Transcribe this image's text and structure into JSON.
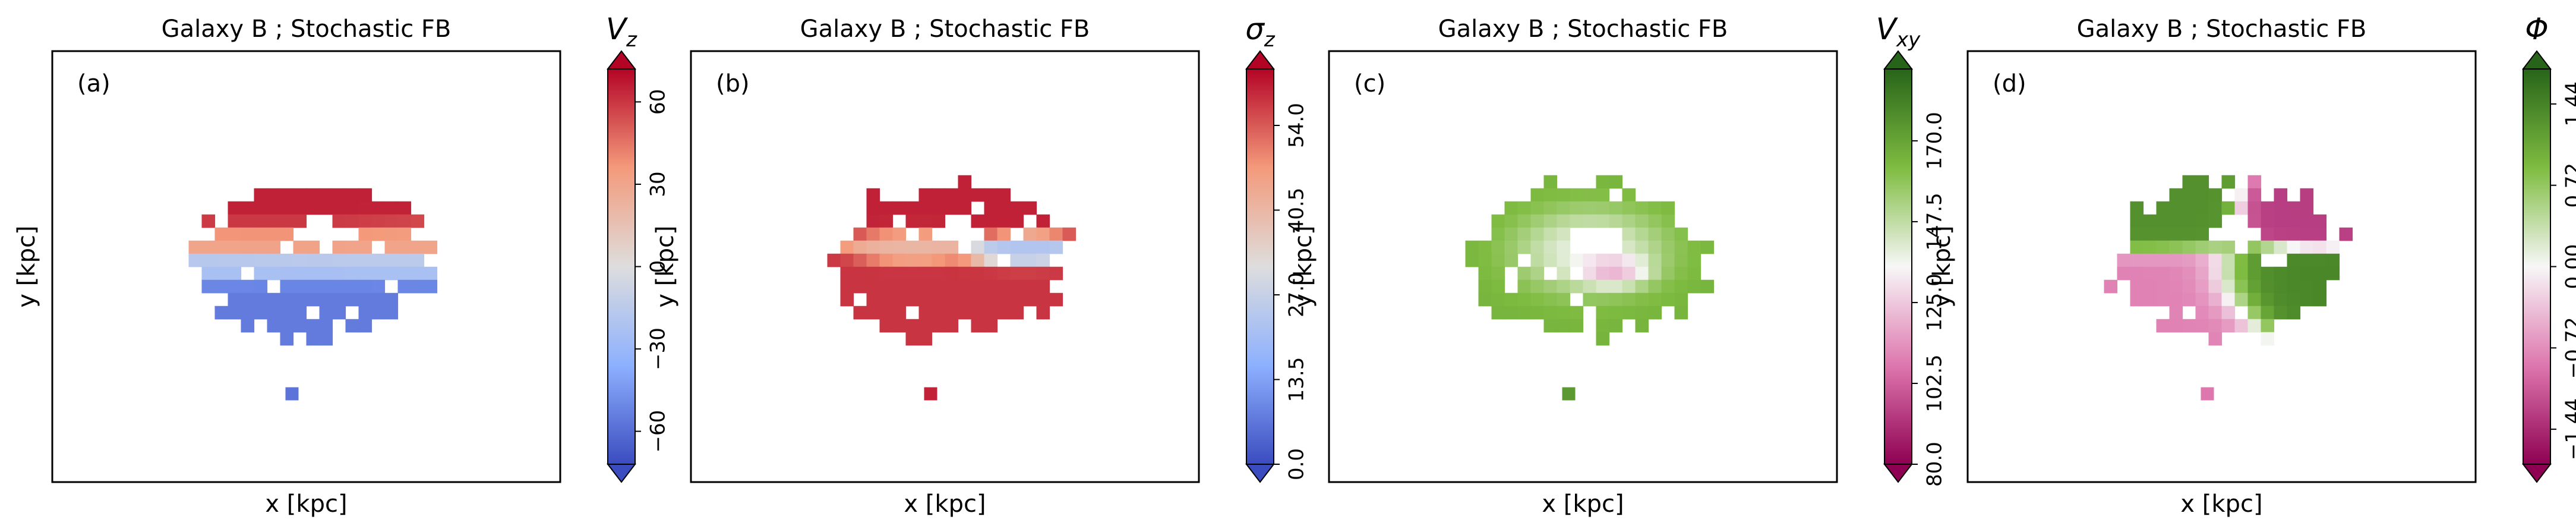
{
  "chart_data": [
    {
      "type": "heatmap",
      "panel_label": "(a)",
      "title": "Galaxy B ; Stochastic FB",
      "xlabel": "x [kpc]",
      "ylabel": "y [kpc]",
      "colorbar": {
        "label": "V_z",
        "label_main": "V",
        "label_sub": "z",
        "colormap": "coolwarm",
        "vmin": -72,
        "vmax": 72,
        "ticks": [
          -60,
          -30,
          0,
          30,
          60
        ],
        "tick_labels": [
          "−60",
          "−30",
          "0",
          "30",
          "60"
        ],
        "extend": "both"
      },
      "map": {
        "blocks": [
          {
            "cx": 0.0,
            "cy": 0.3,
            "rx": 0.45,
            "ry": 0.15,
            "value": 65
          },
          {
            "cx": 0.05,
            "cy": 0.12,
            "rx": 0.5,
            "ry": 0.08,
            "value": 30
          },
          {
            "cx": 0.0,
            "cy": -0.05,
            "rx": 0.52,
            "ry": 0.07,
            "value": -20
          },
          {
            "cx": 0.0,
            "cy": -0.2,
            "rx": 0.5,
            "ry": 0.1,
            "value": -55
          }
        ],
        "hole": {
          "cx": 0.05,
          "cy": 0.15,
          "rx": 0.12,
          "ry": 0.08
        }
      }
    },
    {
      "type": "heatmap",
      "panel_label": "(b)",
      "title": "Galaxy B ; Stochastic FB",
      "xlabel": "x [kpc]",
      "ylabel": "y [kpc]",
      "colorbar": {
        "label": "σ_z",
        "label_main": "σ",
        "label_sub": "z",
        "colormap": "coolwarm",
        "vmin": 0,
        "vmax": 63,
        "ticks": [
          0,
          13.5,
          27,
          40.5,
          54
        ],
        "tick_labels": [
          "0.0",
          "13.5",
          "27.0",
          "40.5",
          "54.0"
        ],
        "extend": "both"
      },
      "map": {
        "blocks": [
          {
            "cx": 0.0,
            "cy": 0.3,
            "rx": 0.45,
            "ry": 0.15,
            "value": 60
          },
          {
            "cx": -0.15,
            "cy": 0.08,
            "rx": 0.2,
            "ry": 0.08,
            "value": 40
          },
          {
            "cx": 0.3,
            "cy": 0.05,
            "rx": 0.18,
            "ry": 0.07,
            "value": 22
          },
          {
            "cx": 0.0,
            "cy": -0.12,
            "rx": 0.5,
            "ry": 0.1,
            "value": 58
          }
        ],
        "hole": {
          "cx": 0.05,
          "cy": 0.15,
          "rx": 0.12,
          "ry": 0.08
        }
      }
    },
    {
      "type": "heatmap",
      "panel_label": "(c)",
      "title": "Galaxy B ; Stochastic FB",
      "xlabel": "x [kpc]",
      "ylabel": "y [kpc]",
      "colorbar": {
        "label": "V_xy",
        "label_main": "V",
        "label_sub": "xy",
        "colormap": "PiYG",
        "vmin": 80,
        "vmax": 190,
        "ticks": [
          80,
          102.5,
          125,
          147.5,
          170
        ],
        "tick_labels": [
          "80.0",
          "102.5",
          "125.0",
          "147.5",
          "170.0"
        ],
        "extend": "both"
      },
      "map": {
        "blocks": [
          {
            "cx": 0.0,
            "cy": 0.05,
            "rx": 0.5,
            "ry": 0.3,
            "value": 165
          },
          {
            "cx": 0.0,
            "cy": 0.05,
            "rx": 0.28,
            "ry": 0.18,
            "value": 110
          },
          {
            "cx": 0.1,
            "cy": -0.05,
            "rx": 0.15,
            "ry": 0.08,
            "value": 90
          }
        ],
        "hole": {
          "cx": 0.03,
          "cy": 0.1,
          "rx": 0.12,
          "ry": 0.08
        }
      }
    },
    {
      "type": "heatmap",
      "panel_label": "(d)",
      "title": "Galaxy B ; Stochastic FB",
      "xlabel": "x [kpc]",
      "ylabel": "y [kpc]",
      "colorbar": {
        "label": "Φ",
        "label_main": "Φ",
        "label_sub": "",
        "colormap": "PiYG",
        "vmin": -1.75,
        "vmax": 1.75,
        "ticks": [
          -1.44,
          -0.72,
          0,
          0.72,
          1.44
        ],
        "tick_labels": [
          "−1.44",
          "−0.72",
          "0.00",
          "0.72",
          "1.44"
        ],
        "extend": "both"
      },
      "map": {
        "blocks": [
          {
            "cx": -0.25,
            "cy": 0.2,
            "rx": 0.22,
            "ry": 0.12,
            "value": 1.3
          },
          {
            "cx": 0.3,
            "cy": 0.22,
            "rx": 0.18,
            "ry": 0.1,
            "value": -1.3
          },
          {
            "cx": -0.2,
            "cy": -0.12,
            "rx": 0.25,
            "ry": 0.14,
            "value": -0.8
          },
          {
            "cx": 0.2,
            "cy": -0.1,
            "rx": 0.25,
            "ry": 0.12,
            "value": 1.4
          }
        ],
        "hole": {
          "cx": 0.05,
          "cy": 0.15,
          "rx": 0.12,
          "ry": 0.08
        }
      }
    }
  ]
}
